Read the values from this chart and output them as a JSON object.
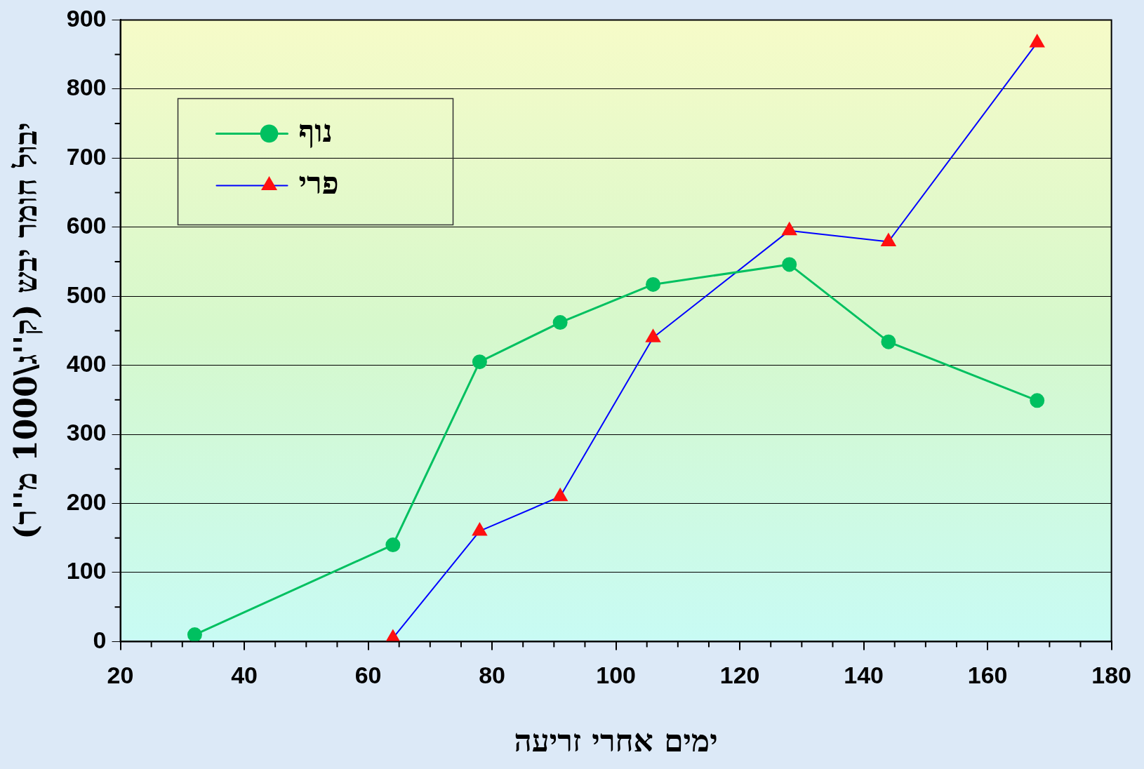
{
  "chart_data": {
    "type": "line",
    "xlabel": "ימים אחרי זריעה",
    "ylabel": "יבול חומר יבש (ק''ג\\1000 מ''ר)",
    "xlim": [
      20,
      180
    ],
    "xticks": [
      20,
      40,
      60,
      80,
      100,
      120,
      140,
      160,
      180
    ],
    "ylim": [
      0,
      900
    ],
    "yticks": [
      0,
      100,
      200,
      300,
      400,
      500,
      600,
      700,
      800,
      900
    ],
    "grid": "y",
    "legend": "top left",
    "series": [
      {
        "name": "נוף",
        "color": "#00c060",
        "marker": "circle",
        "x": [
          32,
          64,
          78,
          91,
          106,
          128,
          144,
          168
        ],
        "values": [
          10,
          140,
          405,
          462,
          517,
          546,
          434,
          349
        ]
      },
      {
        "name": "פרי",
        "color": "#0000ff",
        "colors": [
          "#ff1010",
          "#ff1010",
          "#ff1010",
          "#ff1010",
          "#ff1010",
          "#ff1010",
          "#ff1010"
        ],
        "marker": "triangle",
        "x": [
          64,
          78,
          91,
          106,
          128,
          144,
          168
        ],
        "values": [
          5,
          160,
          210,
          440,
          595,
          579,
          867
        ]
      }
    ]
  }
}
